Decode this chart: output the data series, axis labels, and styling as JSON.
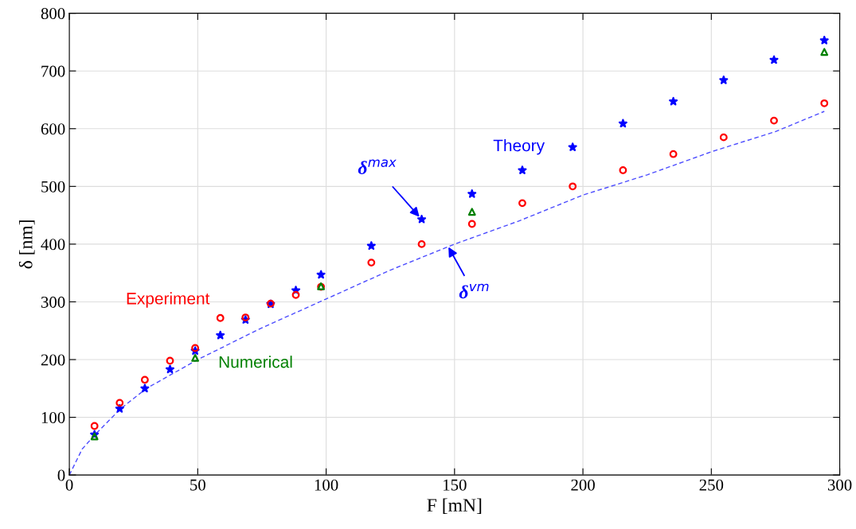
{
  "chart_data": {
    "type": "scatter",
    "xlabel": "F [mN]",
    "ylabel": "δ [nm]",
    "xlim": [
      0,
      300
    ],
    "ylim": [
      0,
      800
    ],
    "xticks": [
      0,
      50,
      100,
      150,
      200,
      250,
      300
    ],
    "yticks": [
      0,
      100,
      200,
      300,
      400,
      500,
      600,
      700,
      800
    ],
    "grid": true,
    "legend": false,
    "series": [
      {
        "type": "line",
        "color": "#4d4dff",
        "line_style": "dashed",
        "marker": "none",
        "x": [
          0,
          5,
          10,
          20,
          30,
          50,
          75,
          100,
          125,
          150,
          175,
          200,
          225,
          250,
          275,
          294
        ],
        "values": [
          0,
          45,
          70,
          115,
          150,
          200,
          255,
          305,
          355,
          400,
          440,
          485,
          520,
          560,
          595,
          630
        ]
      },
      {
        "name": "Theory",
        "color": "#0000ff",
        "marker": "star",
        "x": [
          9.8,
          19.6,
          29.4,
          39.2,
          49,
          58.8,
          68.6,
          78.4,
          88.2,
          98,
          117.6,
          137.2,
          156.8,
          176.4,
          196,
          215.6,
          235.2,
          254.8,
          274.4,
          294
        ],
        "values": [
          70,
          115,
          150,
          183,
          215,
          242,
          269,
          296,
          320,
          347,
          397,
          443,
          487,
          528,
          568,
          609,
          647,
          684,
          719,
          753
        ]
      },
      {
        "name": "Experiment",
        "color": "#ff0000",
        "marker": "circle",
        "x": [
          9.8,
          19.6,
          29.4,
          39.2,
          49,
          58.8,
          68.6,
          78.4,
          88.2,
          98,
          117.6,
          137.2,
          156.8,
          176.4,
          196,
          215.6,
          235.2,
          254.8,
          274.4,
          294
        ],
        "values": [
          85,
          125,
          165,
          198,
          220,
          272,
          273,
          297,
          312,
          326,
          368,
          400,
          435,
          471,
          500,
          528,
          556,
          585,
          614,
          644
        ]
      },
      {
        "name": "Numerical",
        "color": "#008000",
        "marker": "triangle",
        "x": [
          9.8,
          49,
          98,
          156.8,
          294
        ],
        "values": [
          67,
          203,
          327,
          456,
          733
        ]
      }
    ],
    "annotations": [
      {
        "text": "δ$^{max}$",
        "x": 137.2,
        "y": 443
      },
      {
        "text": "δ$^{vm}$",
        "x": 147,
        "y": 400
      }
    ]
  }
}
